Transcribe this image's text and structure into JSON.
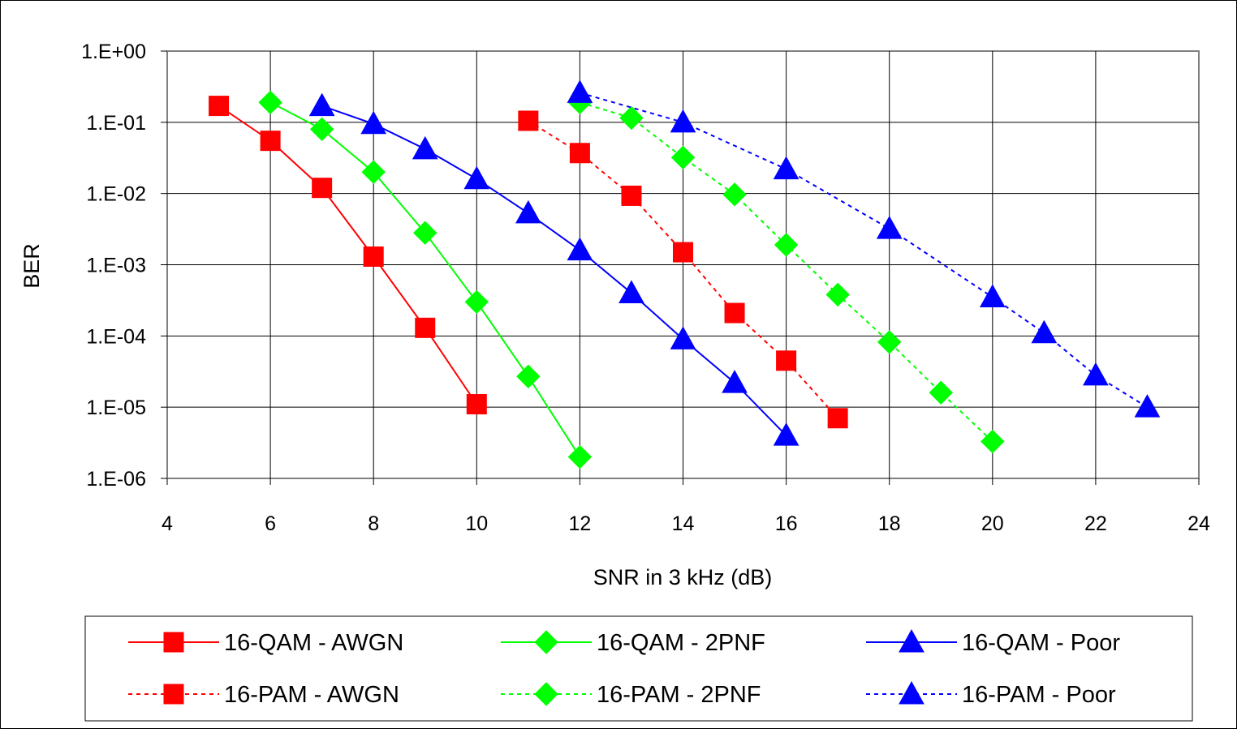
{
  "chart_data": {
    "type": "line",
    "xlabel": "SNR in 3 kHz (dB)",
    "ylabel": "BER",
    "xlim": [
      4,
      24
    ],
    "ylim": [
      1e-06,
      1
    ],
    "y_scale": "log",
    "x_ticks": [
      4,
      6,
      8,
      10,
      12,
      14,
      16,
      18,
      20,
      22,
      24
    ],
    "x_tick_labels": [
      "4",
      "6",
      "8",
      "10",
      "12",
      "14",
      "16",
      "18",
      "20",
      "22",
      "24"
    ],
    "y_ticks": [
      1,
      0.1,
      0.01,
      0.001,
      0.0001,
      1e-05,
      1e-06
    ],
    "y_tick_labels": [
      "1.E+00",
      "1.E-01",
      "1.E-02",
      "1.E-03",
      "1.E-04",
      "1.E-05",
      "1.E-06"
    ],
    "grid": true,
    "legend_position": "bottom",
    "series": [
      {
        "name": "16-QAM - AWGN",
        "color": "#ff0000",
        "line_style": "solid",
        "marker": "square",
        "x": [
          5,
          6,
          7,
          8,
          9,
          10
        ],
        "y": [
          0.17,
          0.055,
          0.012,
          0.0013,
          0.00013,
          1.1e-05
        ]
      },
      {
        "name": "16-QAM - 2PNF",
        "color": "#00ff00",
        "line_style": "solid",
        "marker": "diamond",
        "x": [
          6,
          7,
          8,
          9,
          10,
          11,
          12
        ],
        "y": [
          0.19,
          0.08,
          0.02,
          0.0028,
          0.0003,
          2.7e-05,
          2e-06
        ]
      },
      {
        "name": "16-QAM - Poor",
        "color": "#0000ff",
        "line_style": "solid",
        "marker": "triangle",
        "x": [
          7,
          8,
          9,
          10,
          11,
          12,
          13,
          14,
          15,
          16
        ],
        "y": [
          0.17,
          0.095,
          0.042,
          0.016,
          0.0053,
          0.0016,
          0.0004,
          9e-05,
          2.2e-05,
          4e-06
        ]
      },
      {
        "name": "16-PAM - AWGN",
        "color": "#ff0000",
        "line_style": "dotted",
        "marker": "square",
        "x": [
          11,
          12,
          13,
          14,
          15,
          16,
          17
        ],
        "y": [
          0.105,
          0.037,
          0.0093,
          0.0015,
          0.00021,
          4.5e-05,
          7e-06
        ]
      },
      {
        "name": "16-PAM - 2PNF",
        "color": "#00ff00",
        "line_style": "dotted",
        "marker": "diamond",
        "x": [
          12,
          13,
          14,
          15,
          16,
          17,
          18,
          19,
          20
        ],
        "y": [
          0.19,
          0.115,
          0.032,
          0.0097,
          0.0019,
          0.00038,
          8.2e-05,
          1.6e-05,
          3.3e-06
        ]
      },
      {
        "name": "16-PAM - Poor",
        "color": "#0000ff",
        "line_style": "dotted",
        "marker": "triangle",
        "x": [
          12,
          14,
          16,
          18,
          20,
          21,
          22,
          23
        ],
        "y": [
          0.26,
          0.1,
          0.022,
          0.0032,
          0.00035,
          0.00011,
          2.8e-05,
          1e-05
        ]
      }
    ]
  }
}
